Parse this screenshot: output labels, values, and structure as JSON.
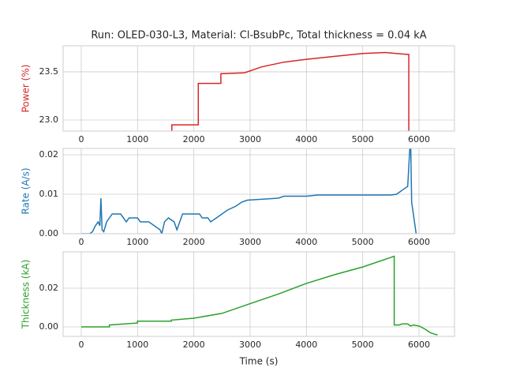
{
  "chart_data": [
    {
      "type": "line",
      "title": "Run: OLED-030-L3, Material: Cl-BsubPc, Total thickness = 0.04 kA",
      "ylabel": "Power (%)",
      "color": "#d62728",
      "grid": true,
      "x": [
        1610,
        1610,
        2080,
        2080,
        2480,
        2480,
        2900,
        3200,
        3600,
        4000,
        4500,
        5000,
        5400,
        5600,
        5820,
        5820
      ],
      "values": [
        22.85,
        22.95,
        22.95,
        23.38,
        23.38,
        23.48,
        23.49,
        23.55,
        23.6,
        23.63,
        23.66,
        23.69,
        23.7,
        23.69,
        23.68,
        22.85
      ],
      "xlim": [
        -322,
        6631
      ],
      "xticks": [
        0,
        1000,
        2000,
        3000,
        4000,
        5000,
        6000
      ],
      "ylim": [
        22.885,
        23.77
      ],
      "yticks": [
        {
          "value": 23,
          "label": "23.0"
        },
        23.5
      ]
    },
    {
      "type": "line",
      "ylabel": "Rate (A/s)",
      "color": "#1f77b4",
      "grid": true,
      "x": [
        0,
        150,
        200,
        250,
        300,
        330,
        350,
        370,
        400,
        450,
        500,
        550,
        700,
        750,
        800,
        850,
        1000,
        1050,
        1200,
        1300,
        1400,
        1430,
        1480,
        1550,
        1650,
        1700,
        1750,
        1800,
        2100,
        2150,
        2250,
        2300,
        2400,
        2500,
        2600,
        2750,
        2850,
        2950,
        3500,
        3600,
        4000,
        4200,
        5500,
        5600,
        5800,
        5850,
        5870,
        5950
      ],
      "values": [
        0,
        0,
        0.0005,
        0.002,
        0.003,
        0.002,
        0.009,
        0.001,
        0.0005,
        0.003,
        0.004,
        0.005,
        0.005,
        0.004,
        0.003,
        0.004,
        0.004,
        0.003,
        0.003,
        0.002,
        0.001,
        0,
        0.003,
        0.004,
        0.003,
        0.001,
        0.003,
        0.005,
        0.005,
        0.004,
        0.004,
        0.003,
        0.004,
        0.005,
        0.006,
        0.007,
        0.008,
        0.0085,
        0.009,
        0.0095,
        0.0095,
        0.0098,
        0.0098,
        0.01,
        0.012,
        0.025,
        0.008,
        0
      ],
      "xlim": [
        -322,
        6631
      ],
      "xticks": [
        0,
        1000,
        2000,
        3000,
        4000,
        5000,
        6000
      ],
      "ylim": [
        0,
        0.0216
      ],
      "yticks": [
        {
          "value": 0,
          "label": "0.00"
        },
        0.01,
        0.02
      ]
    },
    {
      "type": "line",
      "ylabel": "Thickness (kA)",
      "xlabel": "Time (s)",
      "color": "#2ca02c",
      "grid": true,
      "x": [
        0,
        500,
        500,
        1000,
        1000,
        1600,
        1600,
        2000,
        2500,
        3000,
        3500,
        4000,
        4500,
        5000,
        5560,
        5560,
        5650,
        5700,
        5800,
        5850,
        5900,
        6000,
        6100,
        6200,
        6300,
        6330
      ],
      "values": [
        0,
        0,
        0.001,
        0.002,
        0.003,
        0.003,
        0.0035,
        0.0045,
        0.007,
        0.012,
        0.017,
        0.0225,
        0.027,
        0.031,
        0.0365,
        0.001,
        0.001,
        0.0015,
        0.0015,
        0.0005,
        0.001,
        0.0005,
        -0.001,
        -0.003,
        -0.004,
        -0.004
      ],
      "xlim": [
        -322,
        6631
      ],
      "xticks": [
        0,
        1000,
        2000,
        3000,
        4000,
        5000,
        6000
      ],
      "ylim": [
        -0.0049,
        0.0388
      ],
      "yticks": [
        {
          "value": 0,
          "label": "0.00"
        },
        0.02
      ]
    }
  ]
}
